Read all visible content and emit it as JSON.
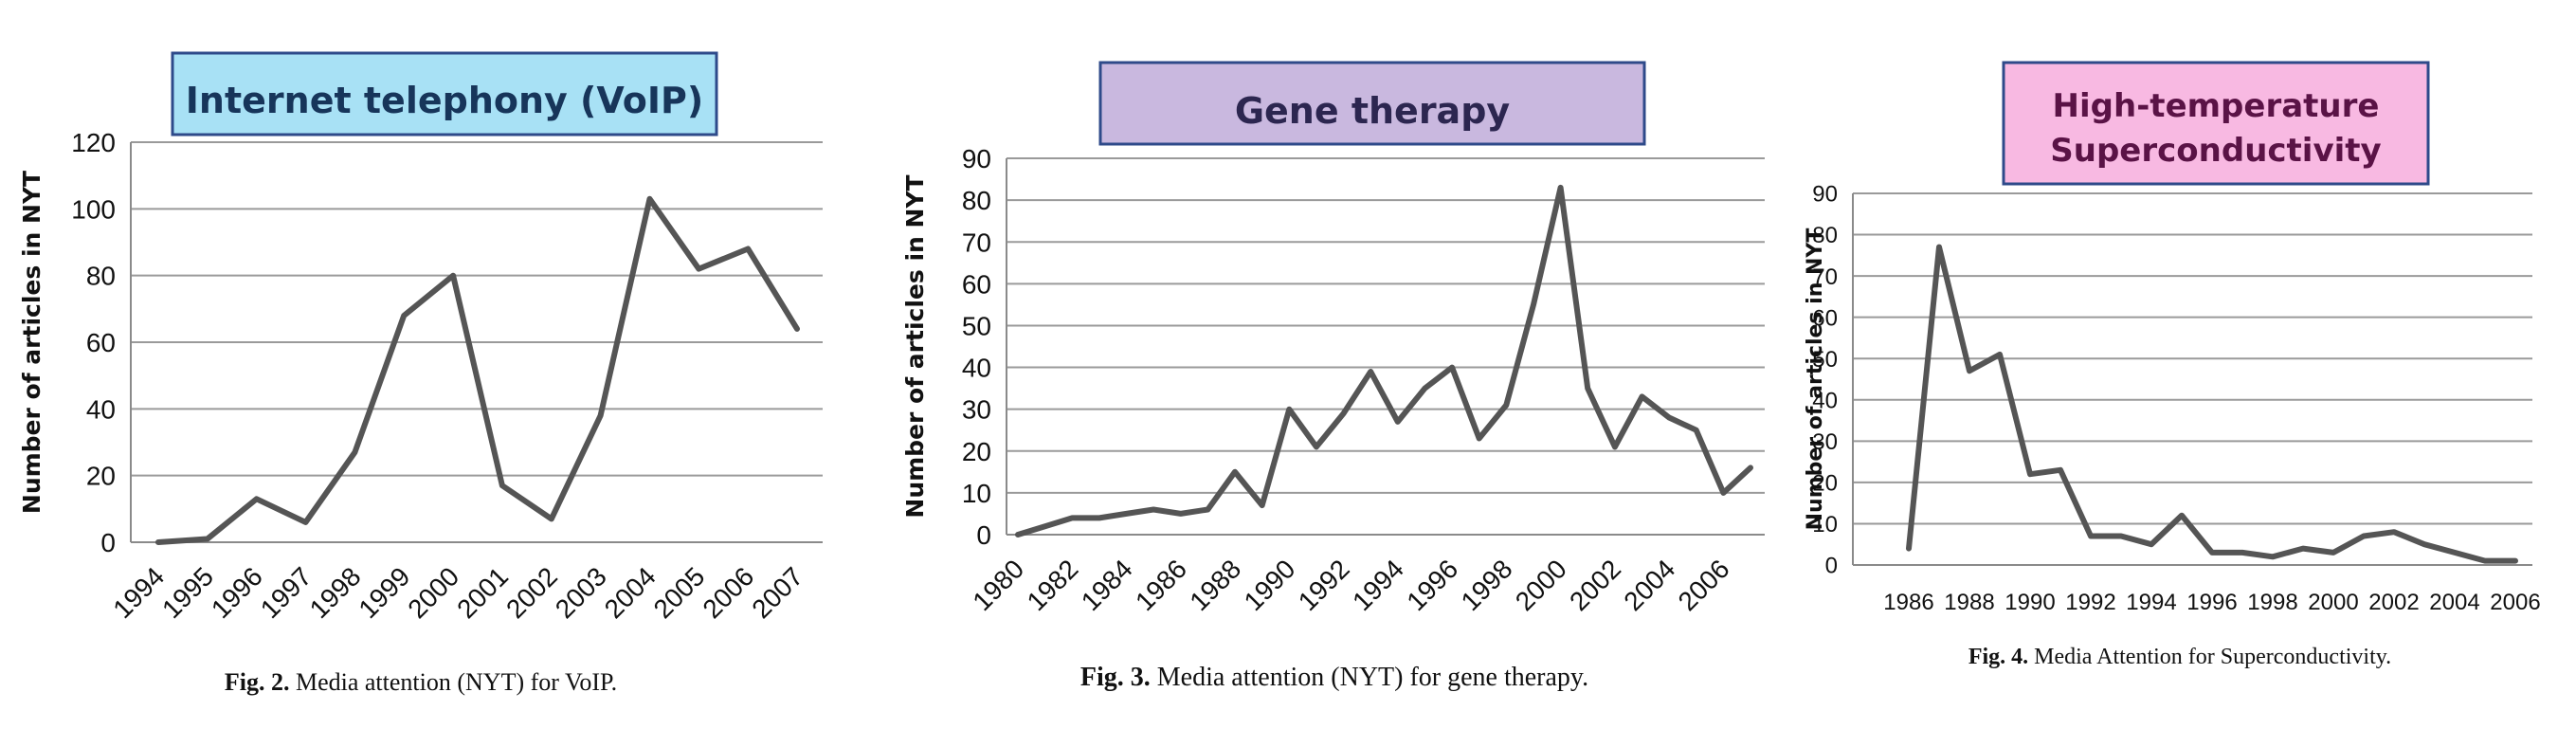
{
  "accent": {
    "line": "#555555",
    "title_border": "#2e4a8a"
  },
  "chart_data": [
    {
      "type": "line",
      "title": "Internet telephony (VoIP)",
      "title_bg": "#a8e1f5",
      "title_color": "#17355a",
      "ylabel": "Number of articles in NYT",
      "xlabel": "",
      "ylim": [
        0,
        120
      ],
      "yticks": [
        0,
        20,
        40,
        60,
        80,
        100,
        120
      ],
      "x": [
        1994,
        1995,
        1996,
        1997,
        1998,
        1999,
        2000,
        2001,
        2002,
        2003,
        2004,
        2005,
        2006,
        2007
      ],
      "xtick_labels": [
        "1994",
        "1995",
        "1996",
        "1997",
        "1998",
        "1999",
        "2000",
        "2001",
        "2002",
        "2003",
        "2004",
        "2005",
        "2006",
        "2007"
      ],
      "series": [
        {
          "values": [
            0,
            1,
            13,
            6,
            27,
            68,
            80,
            17,
            7,
            38,
            103,
            82,
            88,
            64
          ]
        }
      ],
      "grid": true,
      "caption_bold": "Fig. 2.",
      "caption": "Media attention (NYT) for VoIP."
    },
    {
      "type": "line",
      "title": "Gene therapy",
      "title_bg": "#c9b8df",
      "title_color": "#2c2650",
      "ylabel": "Number of articles in NYT",
      "xlabel": "",
      "ylim": [
        0,
        90
      ],
      "yticks": [
        0,
        10,
        20,
        30,
        40,
        50,
        60,
        70,
        80,
        90
      ],
      "x": [
        1980,
        1981,
        1982,
        1983,
        1984,
        1985,
        1986,
        1987,
        1988,
        1989,
        1990,
        1991,
        1992,
        1993,
        1994,
        1995,
        1996,
        1997,
        1998,
        1999,
        2000,
        2001,
        2002,
        2003,
        2004,
        2005,
        2006,
        2007
      ],
      "xtick_labels": [
        "1980",
        "1982",
        "1984",
        "1986",
        "1988",
        "1990",
        "1992",
        "1994",
        "1996",
        "1998",
        "2000",
        "2002",
        "2004",
        "2006"
      ],
      "series": [
        {
          "values": [
            0,
            2,
            4,
            4,
            5,
            6,
            5,
            6,
            15,
            7,
            30,
            21,
            29,
            39,
            27,
            35,
            40,
            23,
            31,
            55,
            83,
            35,
            21,
            33,
            28,
            25,
            10,
            16
          ]
        }
      ],
      "grid": true,
      "caption_bold": "Fig. 3.",
      "caption": "Media attention (NYT) for gene therapy."
    },
    {
      "type": "line",
      "title": "High-temperature Superconductivity",
      "title_lines": [
        "High-temperature",
        "Superconductivity"
      ],
      "title_bg": "#f8b9e2",
      "title_color": "#5a1346",
      "ylabel": "Number of articles in NYT",
      "xlabel": "",
      "ylim": [
        0,
        90
      ],
      "yticks": [
        0,
        10,
        20,
        30,
        40,
        50,
        60,
        70,
        80,
        90
      ],
      "x": [
        1986,
        1987,
        1988,
        1989,
        1990,
        1991,
        1992,
        1993,
        1994,
        1995,
        1996,
        1997,
        1998,
        1999,
        2000,
        2001,
        2002,
        2003,
        2004,
        2005,
        2006
      ],
      "xtick_labels": [
        "1986",
        "1988",
        "1990",
        "1992",
        "1994",
        "1996",
        "1998",
        "2000",
        "2002",
        "2004",
        "2006"
      ],
      "series": [
        {
          "values": [
            4,
            77,
            47,
            51,
            22,
            23,
            7,
            7,
            5,
            12,
            3,
            3,
            2,
            4,
            3,
            7,
            8,
            5,
            3,
            1,
            1
          ]
        }
      ],
      "grid": true,
      "caption_bold": "Fig. 4.",
      "caption": "Media Attention for Superconductivity."
    }
  ]
}
